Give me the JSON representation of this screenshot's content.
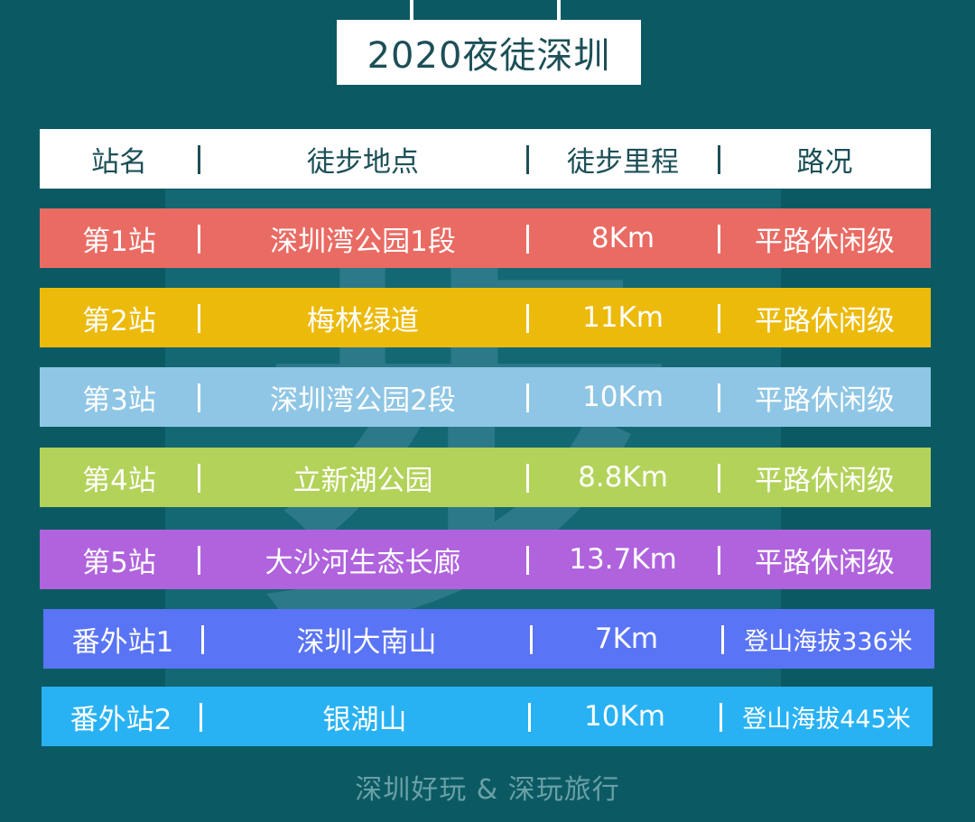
{
  "title": "2020夜徒深圳",
  "header": {
    "station": "站名",
    "location": "徒步地点",
    "distance": "徒步里程",
    "road": "路况"
  },
  "rows": [
    {
      "station": "第1站",
      "location": "深圳湾公园1段",
      "distance": "8Km",
      "road": "平路休闲级",
      "color": "#e96b63"
    },
    {
      "station": "第2站",
      "location": "梅林绿道",
      "distance": "11Km",
      "road": "平路休闲级",
      "color": "#ecba0b"
    },
    {
      "station": "第3站",
      "location": "深圳湾公园2段",
      "distance": "10Km",
      "road": "平路休闲级",
      "color": "#8fc6e5"
    },
    {
      "station": "第4站",
      "location": "立新湖公园",
      "distance": "8.8Km",
      "road": "平路休闲级",
      "color": "#b3d25a"
    },
    {
      "station": "第5站",
      "location": "大沙河生态长廊",
      "distance": "13.7Km",
      "road": "平路休闲级",
      "color": "#b063dd"
    },
    {
      "station": "番外站1",
      "location": "深圳大南山",
      "distance": "7Km",
      "road": "登山海拔336米",
      "color": "#5a74f6"
    },
    {
      "station": "番外站2",
      "location": "银湖山",
      "distance": "10Km",
      "road": "登山海拔445米",
      "color": "#28b2f4"
    }
  ],
  "footer": "深圳好玩 & 深玩旅行",
  "colors": {
    "background": "#0b5a63",
    "title_text": "#1c4f57",
    "footer_text": "#6aa0a6"
  }
}
